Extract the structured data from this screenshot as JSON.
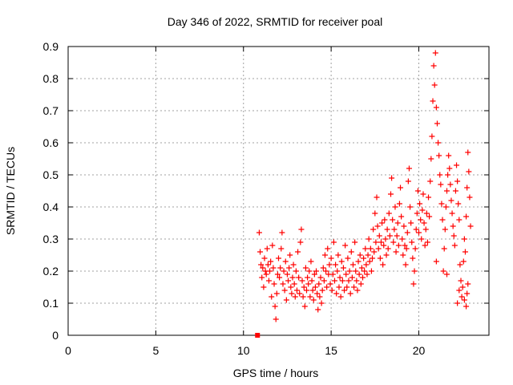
{
  "chart_data": {
    "type": "scatter",
    "title": "Day 346 of 2022, SRMTID for receiver poal",
    "xlabel": "GPS time / hours",
    "ylabel": "SRMTID / TECUs",
    "xlim": [
      0,
      24
    ],
    "ylim": [
      0,
      0.9
    ],
    "x_ticks": [
      0,
      5,
      10,
      15,
      20
    ],
    "y_ticks": [
      0,
      0.1,
      0.2,
      0.3,
      0.4,
      0.5,
      0.6,
      0.7,
      0.8,
      0.9
    ],
    "x_tick_labels": [
      "0",
      "5",
      "10",
      "15",
      "20"
    ],
    "y_tick_labels": [
      "0",
      "0.1",
      "0.2",
      "0.3",
      "0.4",
      "0.5",
      "0.6",
      "0.7",
      "0.8",
      "0.9"
    ],
    "grid": true,
    "marker": "+",
    "color": "#ff0000",
    "start_marker": {
      "x": 10.8,
      "y": 0.0,
      "shape": "square"
    },
    "series": [
      {
        "name": "SRMTID",
        "points": [
          [
            10.9,
            0.32
          ],
          [
            10.95,
            0.26
          ],
          [
            11.0,
            0.22
          ],
          [
            11.05,
            0.18
          ],
          [
            11.1,
            0.21
          ],
          [
            11.15,
            0.15
          ],
          [
            11.2,
            0.24
          ],
          [
            11.25,
            0.2
          ],
          [
            11.3,
            0.19
          ],
          [
            11.35,
            0.27
          ],
          [
            11.4,
            0.22
          ],
          [
            11.45,
            0.17
          ],
          [
            11.5,
            0.2
          ],
          [
            11.55,
            0.23
          ],
          [
            11.6,
            0.12
          ],
          [
            11.65,
            0.28
          ],
          [
            11.7,
            0.21
          ],
          [
            11.75,
            0.16
          ],
          [
            11.8,
            0.09
          ],
          [
            11.85,
            0.05
          ],
          [
            11.9,
            0.13
          ],
          [
            11.95,
            0.19
          ],
          [
            12.0,
            0.24
          ],
          [
            12.05,
            0.18
          ],
          [
            12.1,
            0.21
          ],
          [
            12.15,
            0.27
          ],
          [
            12.2,
            0.32
          ],
          [
            12.25,
            0.16
          ],
          [
            12.3,
            0.2
          ],
          [
            12.35,
            0.14
          ],
          [
            12.4,
            0.23
          ],
          [
            12.45,
            0.11
          ],
          [
            12.5,
            0.19
          ],
          [
            12.55,
            0.17
          ],
          [
            12.6,
            0.21
          ],
          [
            12.65,
            0.25
          ],
          [
            12.7,
            0.15
          ],
          [
            12.75,
            0.13
          ],
          [
            12.8,
            0.18
          ],
          [
            12.85,
            0.22
          ],
          [
            12.9,
            0.16
          ],
          [
            12.95,
            0.12
          ],
          [
            13.0,
            0.2
          ],
          [
            13.05,
            0.14
          ],
          [
            13.1,
            0.26
          ],
          [
            13.15,
            0.18
          ],
          [
            13.2,
            0.13
          ],
          [
            13.25,
            0.29
          ],
          [
            13.3,
            0.33
          ],
          [
            13.35,
            0.17
          ],
          [
            13.4,
            0.12
          ],
          [
            13.45,
            0.15
          ],
          [
            13.5,
            0.09
          ],
          [
            13.55,
            0.21
          ],
          [
            13.6,
            0.14
          ],
          [
            13.65,
            0.18
          ],
          [
            13.7,
            0.16
          ],
          [
            13.75,
            0.2
          ],
          [
            13.8,
            0.12
          ],
          [
            13.85,
            0.23
          ],
          [
            13.9,
            0.17
          ],
          [
            13.95,
            0.14
          ],
          [
            14.0,
            0.11
          ],
          [
            14.05,
            0.19
          ],
          [
            14.1,
            0.15
          ],
          [
            14.15,
            0.2
          ],
          [
            14.2,
            0.13
          ],
          [
            14.25,
            0.08
          ],
          [
            14.3,
            0.16
          ],
          [
            14.35,
            0.12
          ],
          [
            14.4,
            0.18
          ],
          [
            14.45,
            0.1
          ],
          [
            14.5,
            0.14
          ],
          [
            14.55,
            0.21
          ],
          [
            14.6,
            0.17
          ],
          [
            14.65,
            0.25
          ],
          [
            14.7,
            0.2
          ],
          [
            14.75,
            0.15
          ],
          [
            14.8,
            0.27
          ],
          [
            14.85,
            0.19
          ],
          [
            14.9,
            0.22
          ],
          [
            14.95,
            0.16
          ],
          [
            15.0,
            0.24
          ],
          [
            15.05,
            0.14
          ],
          [
            15.1,
            0.19
          ],
          [
            15.15,
            0.29
          ],
          [
            15.2,
            0.17
          ],
          [
            15.25,
            0.22
          ],
          [
            15.3,
            0.13
          ],
          [
            15.35,
            0.2
          ],
          [
            15.4,
            0.25
          ],
          [
            15.45,
            0.15
          ],
          [
            15.5,
            0.18
          ],
          [
            15.55,
            0.12
          ],
          [
            15.6,
            0.23
          ],
          [
            15.65,
            0.17
          ],
          [
            15.7,
            0.21
          ],
          [
            15.75,
            0.14
          ],
          [
            15.8,
            0.28
          ],
          [
            15.85,
            0.19
          ],
          [
            15.9,
            0.15
          ],
          [
            15.95,
            0.24
          ],
          [
            16.0,
            0.17
          ],
          [
            16.05,
            0.2
          ],
          [
            16.1,
            0.13
          ],
          [
            16.15,
            0.26
          ],
          [
            16.2,
            0.18
          ],
          [
            16.25,
            0.22
          ],
          [
            16.3,
            0.15
          ],
          [
            16.35,
            0.29
          ],
          [
            16.4,
            0.2
          ],
          [
            16.45,
            0.17
          ],
          [
            16.5,
            0.14
          ],
          [
            16.55,
            0.23
          ],
          [
            16.6,
            0.19
          ],
          [
            16.65,
            0.25
          ],
          [
            16.7,
            0.16
          ],
          [
            16.75,
            0.21
          ],
          [
            16.8,
            0.18
          ],
          [
            16.85,
            0.24
          ],
          [
            16.9,
            0.2
          ],
          [
            16.95,
            0.27
          ],
          [
            17.0,
            0.22
          ],
          [
            17.05,
            0.19
          ],
          [
            17.1,
            0.25
          ],
          [
            17.15,
            0.3
          ],
          [
            17.2,
            0.23
          ],
          [
            17.25,
            0.27
          ],
          [
            17.3,
            0.2
          ],
          [
            17.35,
            0.24
          ],
          [
            17.4,
            0.33
          ],
          [
            17.45,
            0.26
          ],
          [
            17.5,
            0.38
          ],
          [
            17.55,
            0.29
          ],
          [
            17.6,
            0.43
          ],
          [
            17.65,
            0.34
          ],
          [
            17.7,
            0.27
          ],
          [
            17.75,
            0.31
          ],
          [
            17.8,
            0.24
          ],
          [
            17.85,
            0.29
          ],
          [
            17.9,
            0.35
          ],
          [
            17.95,
            0.22
          ],
          [
            18.0,
            0.28
          ],
          [
            18.05,
            0.36
          ],
          [
            18.1,
            0.3
          ],
          [
            18.15,
            0.25
          ],
          [
            18.2,
            0.33
          ],
          [
            18.25,
            0.27
          ],
          [
            18.3,
            0.38
          ],
          [
            18.35,
            0.31
          ],
          [
            18.4,
            0.44
          ],
          [
            18.45,
            0.49
          ],
          [
            18.5,
            0.36
          ],
          [
            18.55,
            0.29
          ],
          [
            18.6,
            0.33
          ],
          [
            18.65,
            0.4
          ],
          [
            18.7,
            0.26
          ],
          [
            18.75,
            0.31
          ],
          [
            18.8,
            0.35
          ],
          [
            18.85,
            0.28
          ],
          [
            18.9,
            0.41
          ],
          [
            18.95,
            0.46
          ],
          [
            19.0,
            0.37
          ],
          [
            19.05,
            0.3
          ],
          [
            19.1,
            0.25
          ],
          [
            19.15,
            0.34
          ],
          [
            19.2,
            0.28
          ],
          [
            19.25,
            0.22
          ],
          [
            19.3,
            0.27
          ],
          [
            19.35,
            0.32
          ],
          [
            19.4,
            0.48
          ],
          [
            19.45,
            0.52
          ],
          [
            19.5,
            0.4
          ],
          [
            19.55,
            0.35
          ],
          [
            19.6,
            0.29
          ],
          [
            19.65,
            0.24
          ],
          [
            19.7,
            0.16
          ],
          [
            19.75,
            0.2
          ],
          [
            19.8,
            0.27
          ],
          [
            19.85,
            0.33
          ],
          [
            19.9,
            0.38
          ],
          [
            19.95,
            0.45
          ],
          [
            20.0,
            0.32
          ],
          [
            20.05,
            0.41
          ],
          [
            20.1,
            0.36
          ],
          [
            20.15,
            0.3
          ],
          [
            20.2,
            0.39
          ],
          [
            20.25,
            0.44
          ],
          [
            20.3,
            0.35
          ],
          [
            20.35,
            0.28
          ],
          [
            20.4,
            0.33
          ],
          [
            20.45,
            0.38
          ],
          [
            20.5,
            0.29
          ],
          [
            20.55,
            0.43
          ],
          [
            20.6,
            0.37
          ],
          [
            20.65,
            0.48
          ],
          [
            20.7,
            0.55
          ],
          [
            20.75,
            0.62
          ],
          [
            20.8,
            0.73
          ],
          [
            20.85,
            0.84
          ],
          [
            20.9,
            0.78
          ],
          [
            20.95,
            0.88
          ],
          [
            21.0,
            0.71
          ],
          [
            21.05,
            0.66
          ],
          [
            21.1,
            0.6
          ],
          [
            21.15,
            0.56
          ],
          [
            21.2,
            0.5
          ],
          [
            21.25,
            0.47
          ],
          [
            21.3,
            0.41
          ],
          [
            21.35,
            0.36
          ],
          [
            21.4,
            0.2
          ],
          [
            21.45,
            0.27
          ],
          [
            21.5,
            0.33
          ],
          [
            21.55,
            0.4
          ],
          [
            21.6,
            0.45
          ],
          [
            21.65,
            0.5
          ],
          [
            21.7,
            0.56
          ],
          [
            21.75,
            0.52
          ],
          [
            21.8,
            0.47
          ],
          [
            21.85,
            0.42
          ],
          [
            21.9,
            0.38
          ],
          [
            21.95,
            0.34
          ],
          [
            22.0,
            0.31
          ],
          [
            22.05,
            0.28
          ],
          [
            22.1,
            0.45
          ],
          [
            22.15,
            0.53
          ],
          [
            22.2,
            0.48
          ],
          [
            22.25,
            0.41
          ],
          [
            22.3,
            0.36
          ],
          [
            22.35,
            0.22
          ],
          [
            22.4,
            0.17
          ],
          [
            22.45,
            0.12
          ],
          [
            22.5,
            0.15
          ],
          [
            22.55,
            0.23
          ],
          [
            22.6,
            0.3
          ],
          [
            22.65,
            0.26
          ],
          [
            22.7,
            0.37
          ],
          [
            22.75,
            0.46
          ],
          [
            22.8,
            0.57
          ],
          [
            22.85,
            0.51
          ],
          [
            22.9,
            0.43
          ],
          [
            22.95,
            0.34
          ],
          [
            22.7,
            0.09
          ],
          [
            22.75,
            0.13
          ],
          [
            22.8,
            0.16
          ],
          [
            22.6,
            0.11
          ],
          [
            22.3,
            0.14
          ],
          [
            22.2,
            0.1
          ],
          [
            21.6,
            0.19
          ],
          [
            21.0,
            0.23
          ]
        ]
      }
    ]
  }
}
